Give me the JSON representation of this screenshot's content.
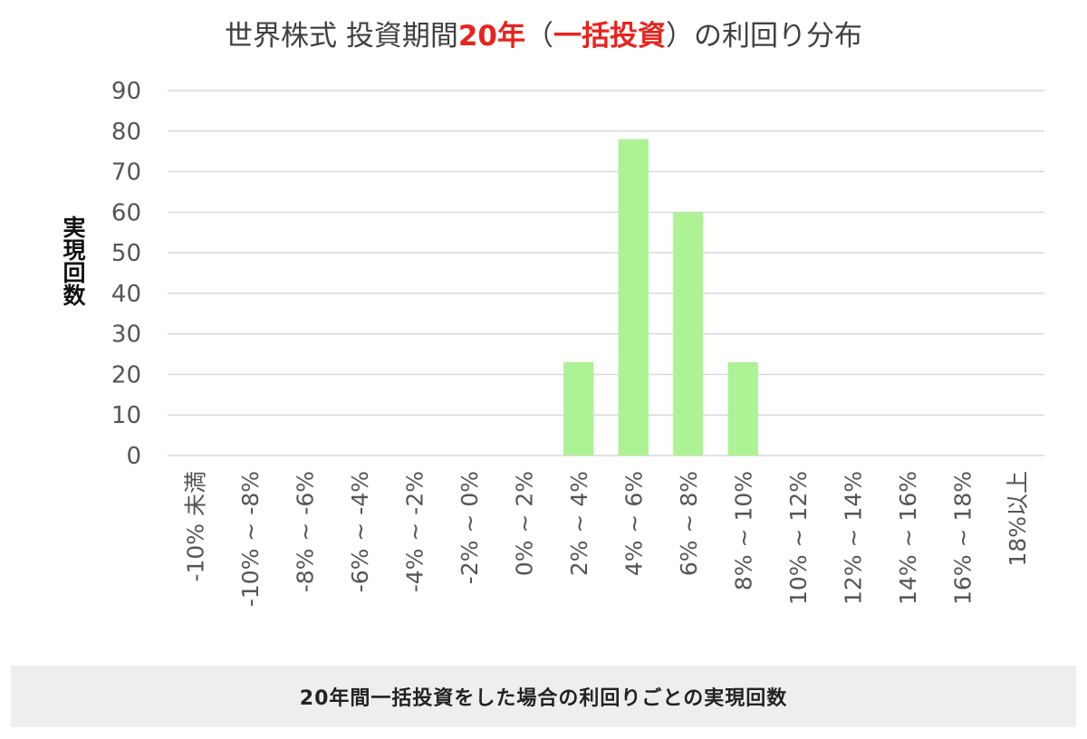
{
  "chart_data": {
    "type": "bar",
    "title_parts": [
      {
        "text": "世界株式 投資期間",
        "highlight": false
      },
      {
        "text": "20年",
        "highlight": true
      },
      {
        "text": "（",
        "highlight": false
      },
      {
        "text": "一括投資",
        "highlight": true
      },
      {
        "text": "）の利回り分布",
        "highlight": false
      }
    ],
    "ylabel": "実現回数",
    "xlabel": "",
    "ylim": [
      0,
      90
    ],
    "yticks": [
      0,
      10,
      20,
      30,
      40,
      50,
      60,
      70,
      80,
      90
    ],
    "grid": true,
    "categories": [
      "-10% 未満",
      "-10% ~ -8%",
      "-8% ~ -6%",
      "-6% ~ -4%",
      "-4% ~ -2%",
      "-2% ~ 0%",
      "0% ~ 2%",
      "2% ~ 4%",
      "4% ~ 6%",
      "6% ~ 8%",
      "8% ~ 10%",
      "10% ~ 12%",
      "12% ~ 14%",
      "14% ~ 16%",
      "16% ~ 18%",
      "18%以上"
    ],
    "values": [
      0,
      0,
      0,
      0,
      0,
      0,
      0,
      23,
      78,
      60,
      23,
      0,
      0,
      0,
      0,
      0
    ],
    "bar_color": "#adf295",
    "highlight_color": "#e8231c"
  },
  "caption": "20年間一括投資をした場合の利回りごとの実現回数"
}
